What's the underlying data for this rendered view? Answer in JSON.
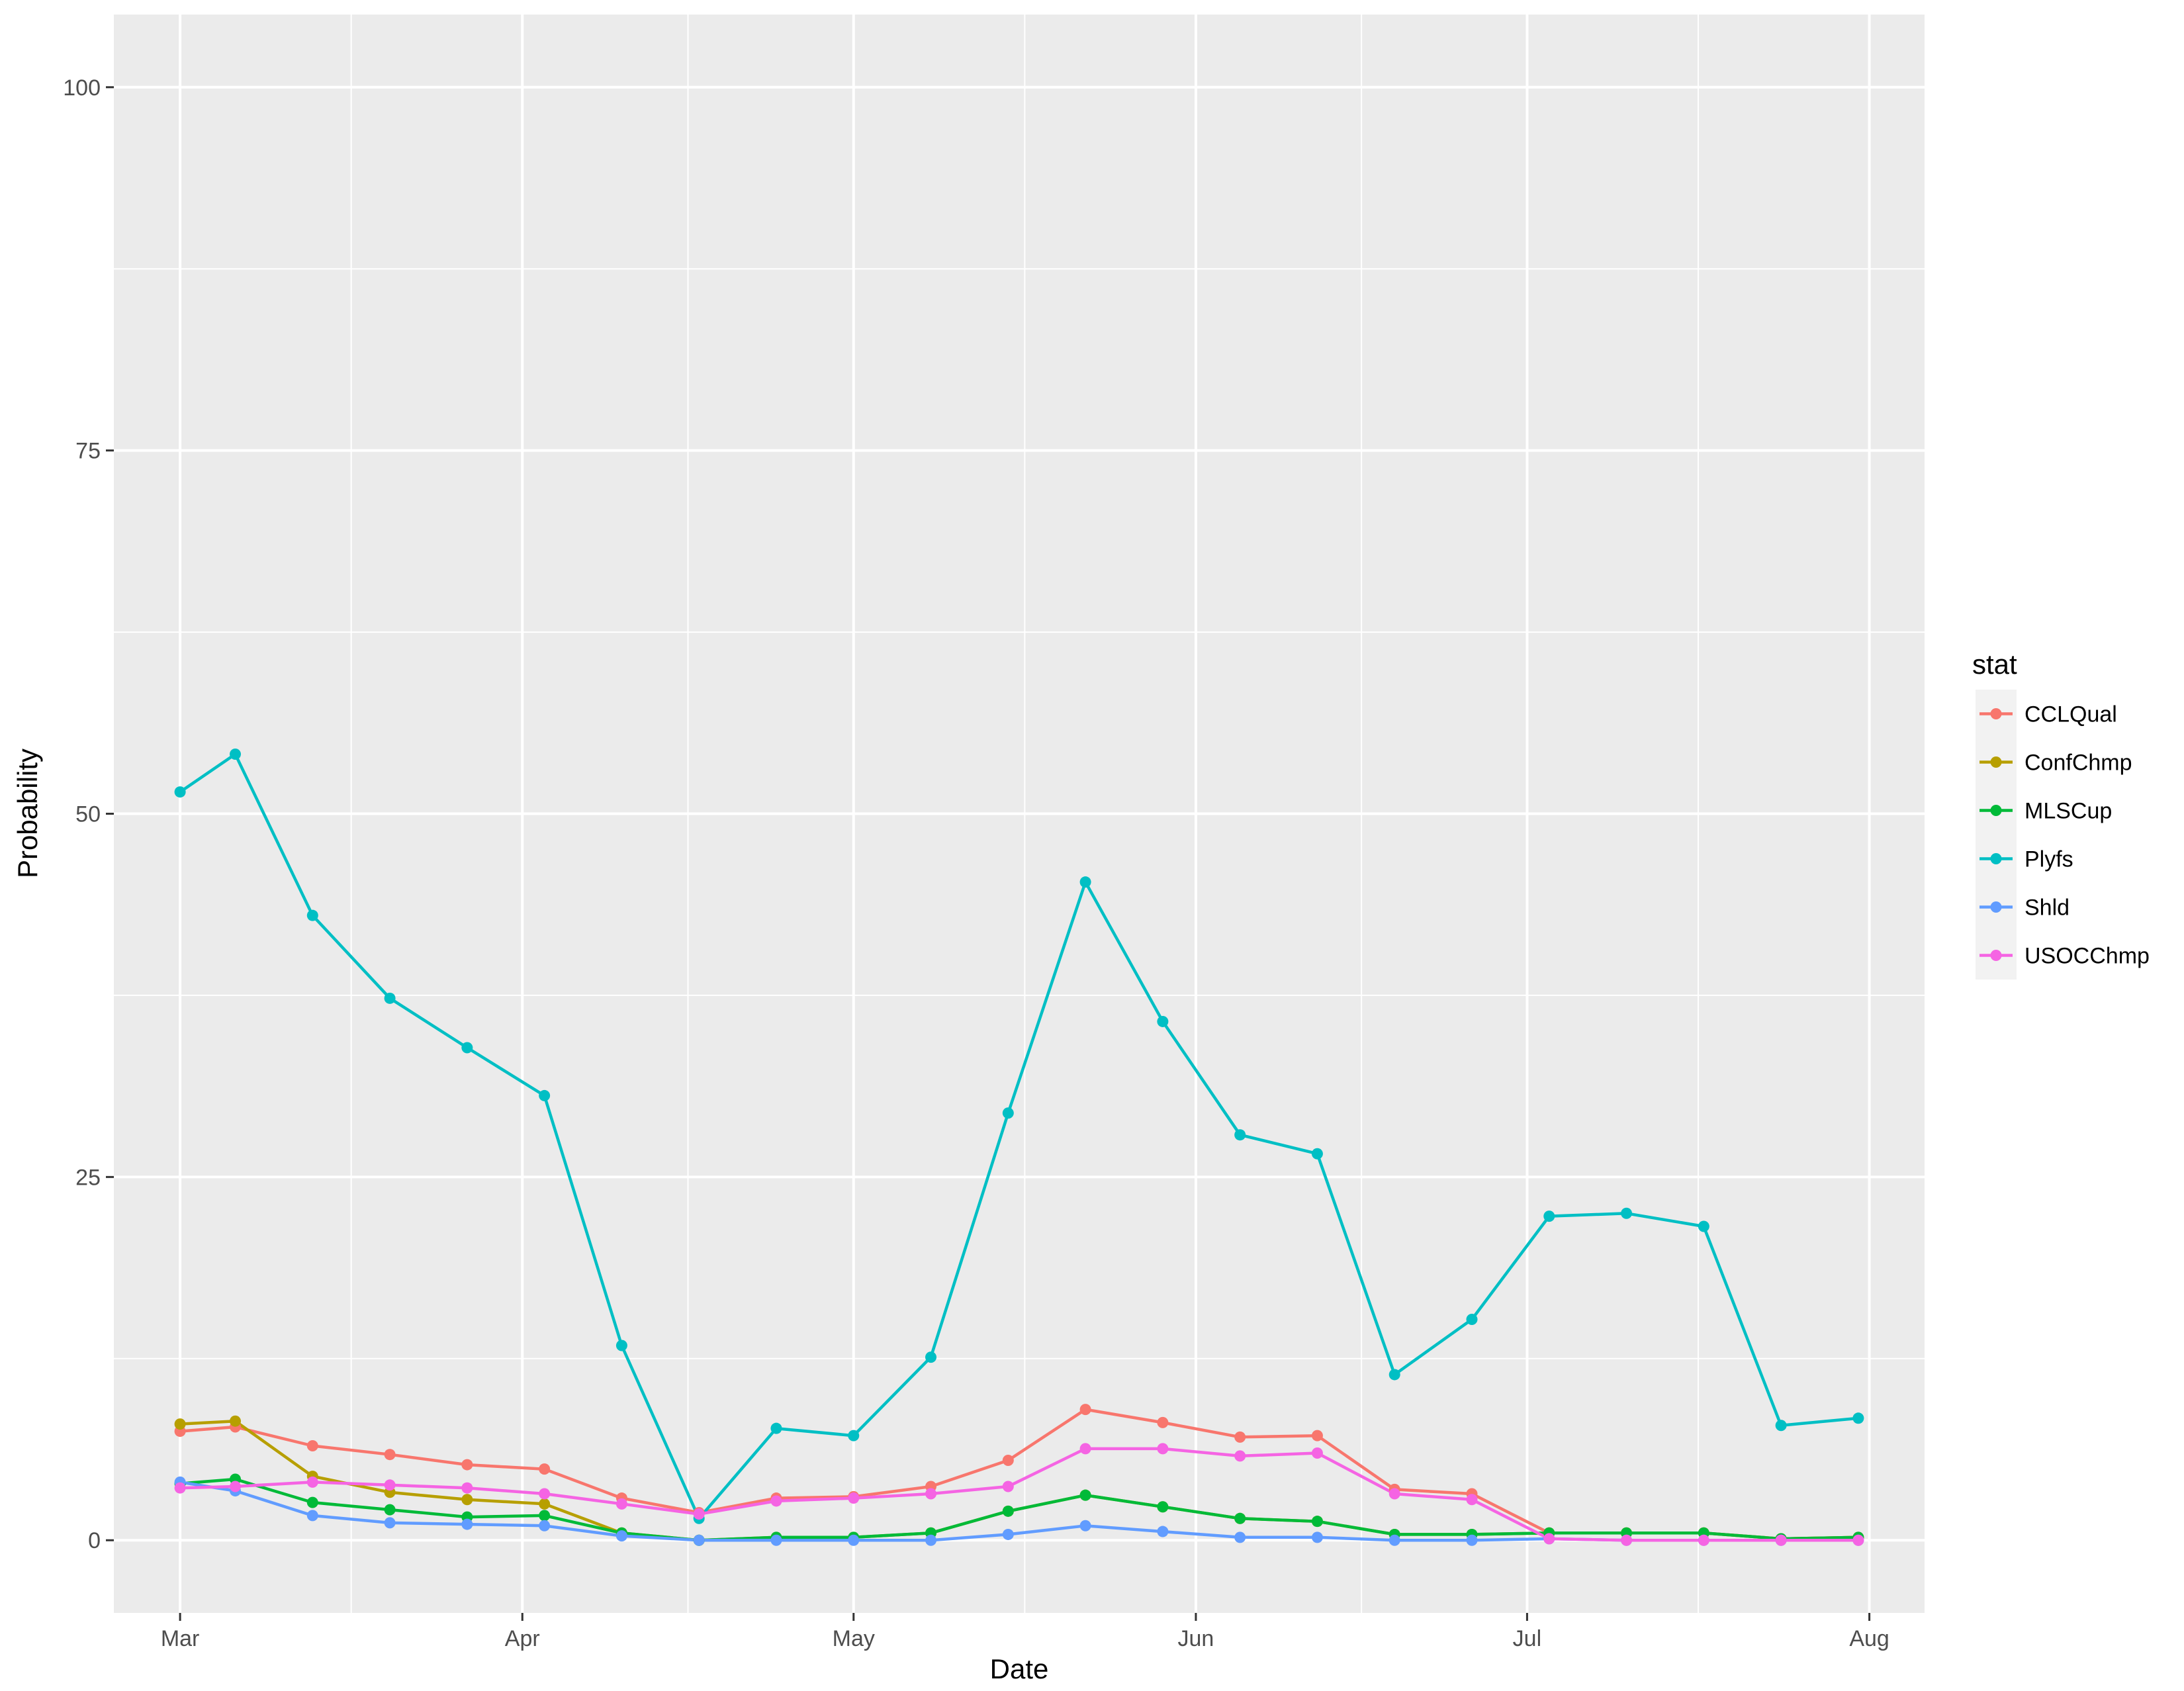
{
  "chart_data": {
    "type": "line",
    "title": "",
    "xlabel": "Date",
    "ylabel": "Probability",
    "ylim": [
      -5,
      105
    ],
    "yticks": [
      0,
      25,
      50,
      75,
      100
    ],
    "xlim": [
      "2017-02-23",
      "2017-08-06"
    ],
    "xticks": [
      {
        "date": "2017-03-01",
        "label": "Mar"
      },
      {
        "date": "2017-04-01",
        "label": "Apr"
      },
      {
        "date": "2017-05-01",
        "label": "May"
      },
      {
        "date": "2017-06-01",
        "label": "Jun"
      },
      {
        "date": "2017-07-01",
        "label": "Jul"
      },
      {
        "date": "2017-08-01",
        "label": "Aug"
      }
    ],
    "grid": true,
    "legend": {
      "title": "stat",
      "position": "right"
    },
    "x": [
      "2017-03-01",
      "2017-03-06",
      "2017-03-13",
      "2017-03-20",
      "2017-03-27",
      "2017-04-03",
      "2017-04-10",
      "2017-04-17",
      "2017-04-24",
      "2017-05-01",
      "2017-05-08",
      "2017-05-15",
      "2017-05-22",
      "2017-05-29",
      "2017-06-05",
      "2017-06-12",
      "2017-06-19",
      "2017-06-26",
      "2017-07-03",
      "2017-07-10",
      "2017-07-17",
      "2017-07-24",
      "2017-07-31"
    ],
    "series": [
      {
        "name": "CCLQual",
        "color": "#F8766D",
        "values": [
          7.5,
          7.8,
          6.5,
          5.9,
          5.2,
          4.9,
          2.9,
          1.9,
          2.9,
          3.0,
          3.7,
          5.5,
          9.0,
          8.1,
          7.1,
          7.2,
          3.5,
          3.2,
          0.5,
          0.5,
          0.5,
          0.1,
          0.2
        ]
      },
      {
        "name": "ConfChmp",
        "color": "#B79F00",
        "values": [
          8.0,
          8.2,
          4.4,
          3.3,
          2.8,
          2.5,
          0.5,
          0.0,
          0.2,
          0.2,
          0.5,
          2.0,
          3.1,
          2.3,
          1.5,
          1.3,
          0.4,
          0.4,
          0.5,
          0.5,
          0.5,
          0.1,
          0.2
        ]
      },
      {
        "name": "MLSCup",
        "color": "#00BA38",
        "values": [
          3.9,
          4.2,
          2.6,
          2.1,
          1.6,
          1.7,
          0.5,
          0.0,
          0.2,
          0.2,
          0.5,
          2.0,
          3.1,
          2.3,
          1.5,
          1.3,
          0.4,
          0.4,
          0.5,
          0.5,
          0.5,
          0.1,
          0.2
        ]
      },
      {
        "name": "Plyfs",
        "color": "#00BFC4",
        "values": [
          51.5,
          54.1,
          43.0,
          37.3,
          33.9,
          30.6,
          13.4,
          1.5,
          7.7,
          7.2,
          12.6,
          29.4,
          45.3,
          35.7,
          27.9,
          26.6,
          11.4,
          15.2,
          22.3,
          22.5,
          21.6,
          7.9,
          8.4
        ]
      },
      {
        "name": "Shld",
        "color": "#619CFF",
        "values": [
          4.0,
          3.4,
          1.7,
          1.2,
          1.1,
          1.0,
          0.3,
          0.0,
          0.0,
          0.0,
          0.0,
          0.4,
          1.0,
          0.6,
          0.2,
          0.2,
          0.0,
          0.0,
          0.1,
          0.0,
          0.0,
          0.0,
          0.0
        ]
      },
      {
        "name": "USOCChmp",
        "color": "#F564E3",
        "values": [
          3.6,
          3.7,
          4.0,
          3.8,
          3.6,
          3.2,
          2.5,
          1.8,
          2.7,
          2.9,
          3.2,
          3.7,
          6.3,
          6.3,
          5.8,
          6.0,
          3.2,
          2.8,
          0.1,
          0.0,
          0.0,
          0.0,
          0.0
        ]
      }
    ]
  }
}
